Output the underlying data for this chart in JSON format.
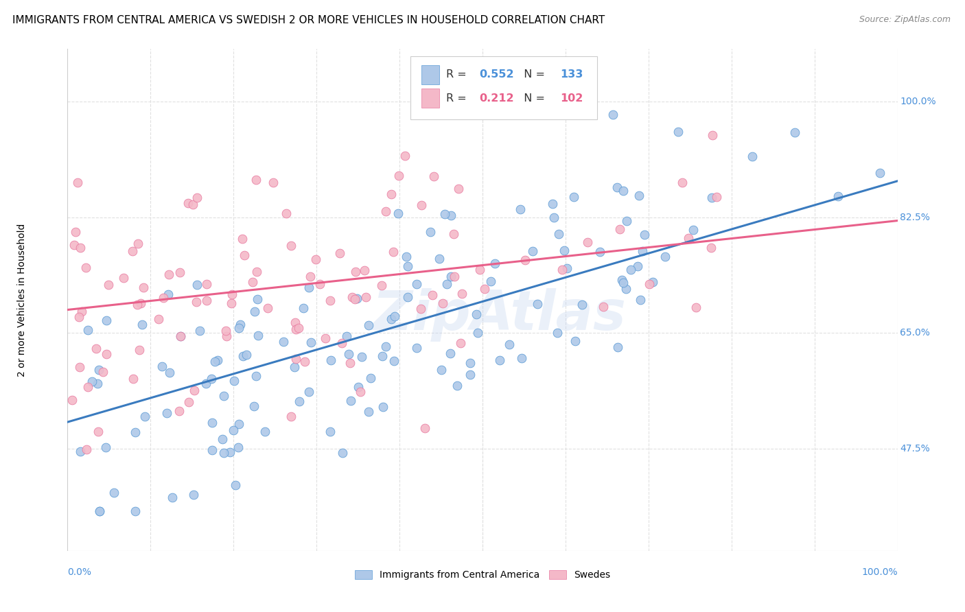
{
  "title": "IMMIGRANTS FROM CENTRAL AMERICA VS SWEDISH 2 OR MORE VEHICLES IN HOUSEHOLD CORRELATION CHART",
  "source": "Source: ZipAtlas.com",
  "ylabel": "2 or more Vehicles in Household",
  "ytick_labels": [
    "47.5%",
    "65.0%",
    "82.5%",
    "100.0%"
  ],
  "ytick_values": [
    0.475,
    0.65,
    0.825,
    1.0
  ],
  "xlim": [
    0.0,
    1.0
  ],
  "ylim": [
    0.32,
    1.08
  ],
  "blue_R": "0.552",
  "blue_N": "133",
  "pink_R": "0.212",
  "pink_N": "102",
  "blue_color": "#aec8e8",
  "pink_color": "#f4b8c8",
  "blue_edge_color": "#5b9bd5",
  "pink_edge_color": "#e87aa0",
  "blue_line_color": "#3a7bbf",
  "pink_line_color": "#e8608a",
  "blue_label_color": "#4a90d9",
  "legend_blue_label": "Immigrants from Central America",
  "legend_pink_label": "Swedes",
  "watermark": "ZipAtlas",
  "background_color": "#ffffff",
  "grid_color": "#e0e0e0",
  "title_fontsize": 11,
  "axis_label_fontsize": 10,
  "tick_fontsize": 10,
  "blue_line_intercept": 0.515,
  "blue_line_slope": 0.365,
  "pink_line_intercept": 0.685,
  "pink_line_slope": 0.135
}
